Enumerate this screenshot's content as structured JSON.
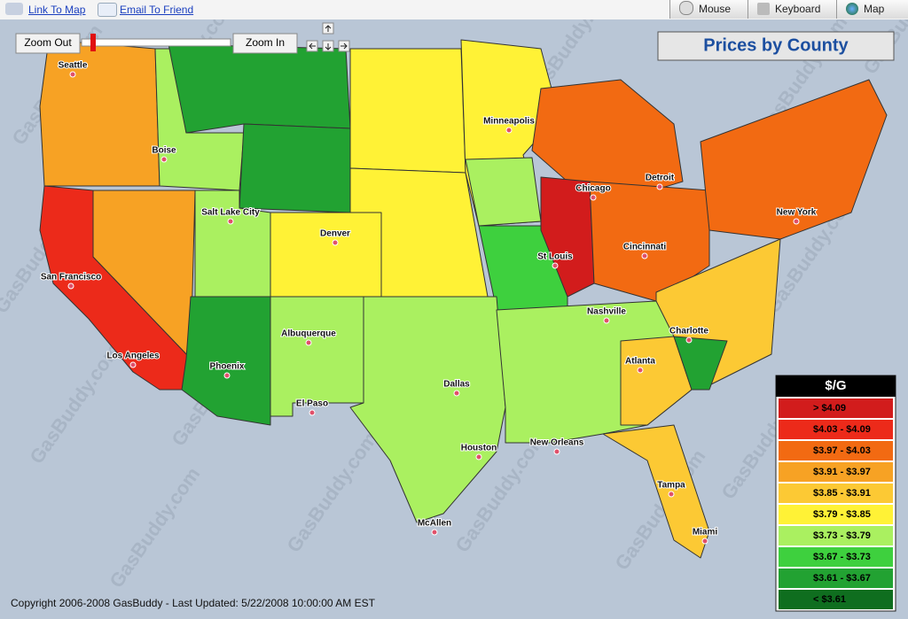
{
  "toolbar": {
    "links": [
      "Link To Map",
      "Email To Friend"
    ],
    "tabs": [
      "Mouse",
      "Keyboard",
      "Map"
    ]
  },
  "map": {
    "zoom_out": "Zoom Out",
    "zoom_in": "Zoom In",
    "title": "Prices by County",
    "watermark": "GasBuddy.com",
    "cities": [
      "Seattle",
      "Boise",
      "Salt Lake City",
      "Denver",
      "San Francisco",
      "Los Angeles",
      "Phoenix",
      "Albuquerque",
      "El Paso",
      "Dallas",
      "Houston",
      "McAllen",
      "New Orleans",
      "St Louis",
      "Chicago",
      "Minneapolis",
      "Detroit",
      "Cincinnati",
      "New York",
      "Nashville",
      "Charlotte",
      "Atlanta",
      "Tampa",
      "Miami"
    ],
    "legend": {
      "title": "$/G",
      "items": [
        {
          "label": "> $4.09",
          "color": "#d21c1c"
        },
        {
          "label": "$4.03 - $4.09",
          "color": "#ec2a1a"
        },
        {
          "label": "$3.97 - $4.03",
          "color": "#f26a12"
        },
        {
          "label": "$3.91 - $3.97",
          "color": "#f7a224"
        },
        {
          "label": "$3.85 - $3.91",
          "color": "#fcc934"
        },
        {
          "label": "$3.79 - $3.85",
          "color": "#fff236"
        },
        {
          "label": "$3.73 - $3.79",
          "color": "#aaf060"
        },
        {
          "label": "$3.67 - $3.73",
          "color": "#3ed03e"
        },
        {
          "label": "$3.61 - $3.67",
          "color": "#22a232"
        },
        {
          "label": "< $3.61",
          "color": "#0f6e1f"
        }
      ]
    }
  },
  "footer": "Copyright 2006-2008 GasBuddy - Last Updated: 5/22/2008 10:00:00 AM EST"
}
